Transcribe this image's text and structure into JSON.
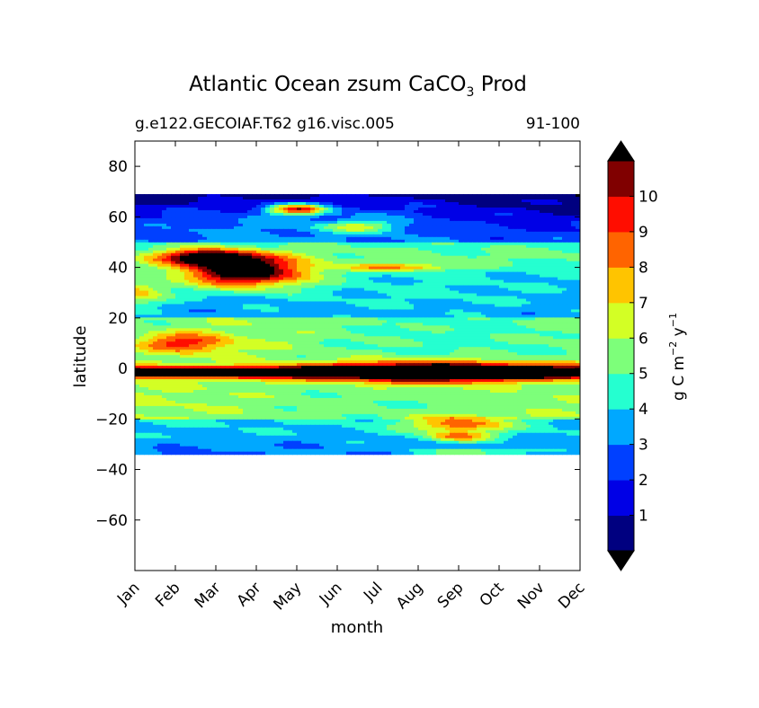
{
  "chart_data": {
    "type": "contourf",
    "title_main": "Atlantic Ocean zsum CaCO",
    "title_sub": "3",
    "title_tail": " Prod",
    "subtitle_left": "g.e122.GECOIAF.T62 g16.visc.005",
    "subtitle_right": "91-100",
    "xlabel": "month",
    "ylabel": "latitude",
    "months": [
      "Jan",
      "Feb",
      "Mar",
      "Apr",
      "May",
      "Jun",
      "Jul",
      "Aug",
      "Sep",
      "Oct",
      "Nov",
      "Dec"
    ],
    "xlim": [
      0,
      11
    ],
    "ylim": [
      -80,
      90
    ],
    "yticks": [
      {
        "value": 80,
        "label": "80"
      },
      {
        "value": 60,
        "label": "60"
      },
      {
        "value": 40,
        "label": "40"
      },
      {
        "value": 20,
        "label": "20"
      },
      {
        "value": 0,
        "label": "0"
      },
      {
        "value": -20,
        "label": "−20"
      },
      {
        "value": -40,
        "label": "−40"
      },
      {
        "value": -60,
        "label": "−60"
      }
    ],
    "data_lat_range": [
      -34,
      69
    ],
    "colorbar": {
      "label": "g C m",
      "label_exp1": "−2",
      "label_mid": "  y",
      "label_exp2": "−1",
      "levels": [
        0,
        1,
        2,
        3,
        4,
        5,
        6,
        7,
        8,
        9,
        10,
        11
      ],
      "tick_labels": [
        "1",
        "2",
        "3",
        "4",
        "5",
        "6",
        "7",
        "8",
        "9",
        "10"
      ],
      "colors": [
        "#000080",
        "#0000e6",
        "#0040ff",
        "#00a8ff",
        "#25ffd0",
        "#7dff7a",
        "#d3ff25",
        "#ffc400",
        "#ff6400",
        "#ff0d00",
        "#800000"
      ],
      "extend_low": "#000000",
      "extend_high": "#000000"
    },
    "fields": {
      "nh_blue_band": {
        "lat": [
          50,
          69
        ],
        "value_range": [
          0.2,
          3.0
        ]
      },
      "subpolar_bloom_peak": {
        "month": "Apr",
        "lat": 40,
        "value": 12
      },
      "may_60N_peak": {
        "month": "May",
        "lat": 63,
        "value": 12
      },
      "equatorial_band": {
        "lat": 0,
        "value": 12
      },
      "tropical_feb_peak": {
        "month": "Feb",
        "lat": 10,
        "value": 9.5
      },
      "sh_sep_peak": {
        "month": "Sep",
        "lat": -22,
        "value": 9.5
      },
      "south_band": {
        "lat": [
          -34,
          -20
        ],
        "value_range": [
          3,
          5
        ]
      }
    }
  }
}
